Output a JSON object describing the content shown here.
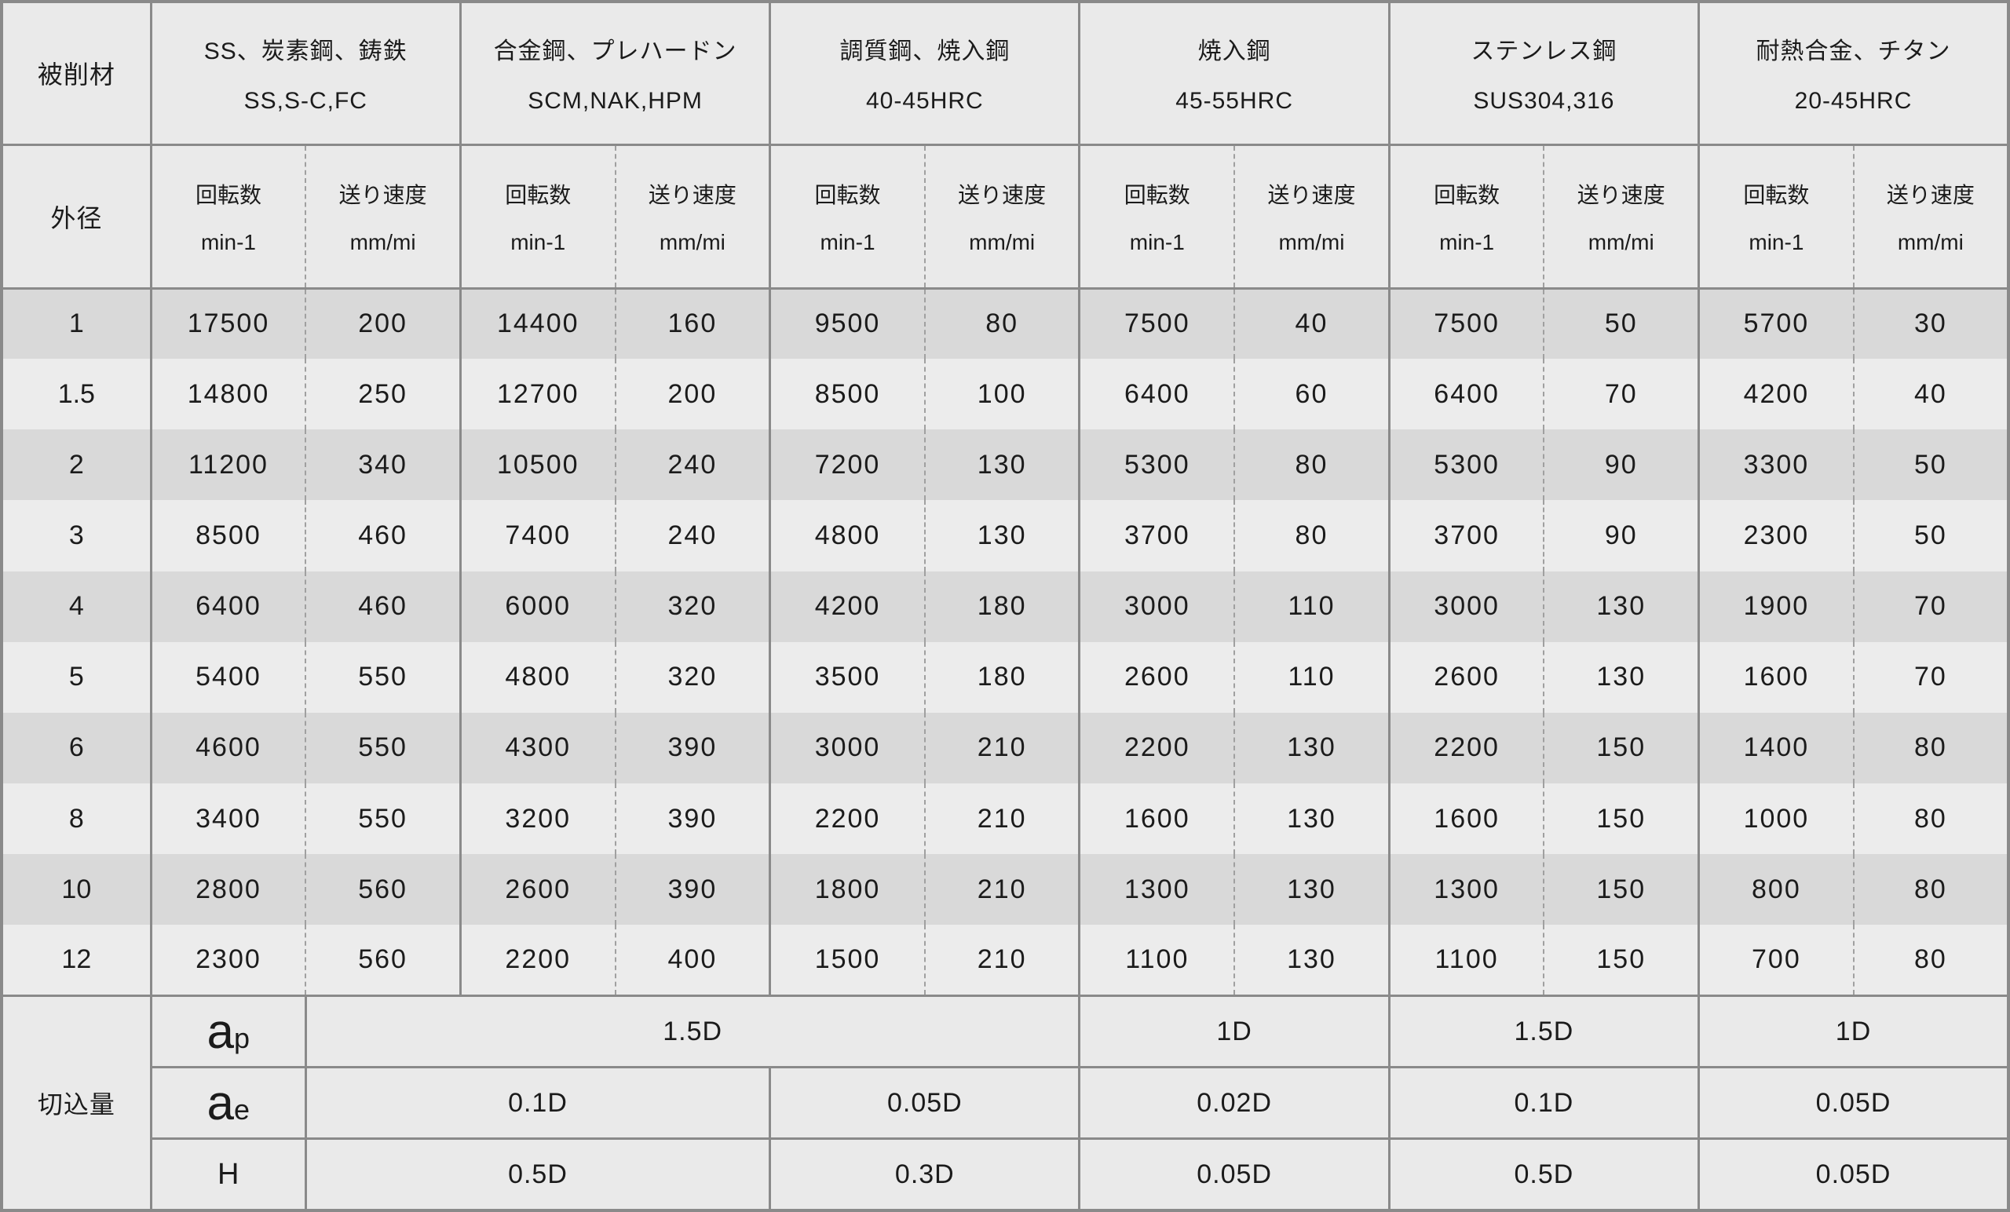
{
  "table": {
    "corner_label": "被削材",
    "diameter_label": "外径",
    "depth_label": "切込量",
    "groups": [
      {
        "name": "SS、炭素鋼、鋳鉄",
        "code": "SS,S-C,FC"
      },
      {
        "name": "合金鋼、プレハードン",
        "code": "SCM,NAK,HPM"
      },
      {
        "name": "調質鋼、焼入鋼",
        "code": "40-45HRC"
      },
      {
        "name": "焼入鋼",
        "code": "45-55HRC"
      },
      {
        "name": "ステンレス鋼",
        "code": "SUS304,316"
      },
      {
        "name": "耐熱合金、チタン",
        "code": "20-45HRC"
      }
    ],
    "subheaders": {
      "speed": "回転数",
      "speed_unit": "min-1",
      "feed": "送り速度",
      "feed_unit": "mm/mi"
    },
    "rows": [
      {
        "d": "1",
        "values": [
          "17500",
          "200",
          "14400",
          "160",
          "9500",
          "80",
          "7500",
          "40",
          "7500",
          "50",
          "5700",
          "30"
        ]
      },
      {
        "d": "1.5",
        "values": [
          "14800",
          "250",
          "12700",
          "200",
          "8500",
          "100",
          "6400",
          "60",
          "6400",
          "70",
          "4200",
          "40"
        ]
      },
      {
        "d": "2",
        "values": [
          "11200",
          "340",
          "10500",
          "240",
          "7200",
          "130",
          "5300",
          "80",
          "5300",
          "90",
          "3300",
          "50"
        ]
      },
      {
        "d": "3",
        "values": [
          "8500",
          "460",
          "7400",
          "240",
          "4800",
          "130",
          "3700",
          "80",
          "3700",
          "90",
          "2300",
          "50"
        ]
      },
      {
        "d": "4",
        "values": [
          "6400",
          "460",
          "6000",
          "320",
          "4200",
          "180",
          "3000",
          "110",
          "3000",
          "130",
          "1900",
          "70"
        ]
      },
      {
        "d": "5",
        "values": [
          "5400",
          "550",
          "4800",
          "320",
          "3500",
          "180",
          "2600",
          "110",
          "2600",
          "130",
          "1600",
          "70"
        ]
      },
      {
        "d": "6",
        "values": [
          "4600",
          "550",
          "4300",
          "390",
          "3000",
          "210",
          "2200",
          "130",
          "2200",
          "150",
          "1400",
          "80"
        ]
      },
      {
        "d": "8",
        "values": [
          "3400",
          "550",
          "3200",
          "390",
          "2200",
          "210",
          "1600",
          "130",
          "1600",
          "150",
          "1000",
          "80"
        ]
      },
      {
        "d": "10",
        "values": [
          "2800",
          "560",
          "2600",
          "390",
          "1800",
          "210",
          "1300",
          "130",
          "1300",
          "150",
          "800",
          "80"
        ]
      },
      {
        "d": "12",
        "values": [
          "2300",
          "560",
          "2200",
          "400",
          "1500",
          "210",
          "1100",
          "130",
          "1100",
          "150",
          "700",
          "80"
        ]
      }
    ],
    "depth_rows": [
      {
        "label_main": "a",
        "label_sub": "p",
        "cells": [
          {
            "text": "1.5D"
          },
          {
            "text": "1D"
          },
          {
            "text": "1.5D"
          },
          {
            "text": "1D"
          }
        ]
      },
      {
        "label_main": "a",
        "label_sub": "e",
        "cells": [
          {
            "text": "0.1D"
          },
          {
            "text": "0.05D"
          },
          {
            "text": "0.02D"
          },
          {
            "text": "0.1D"
          },
          {
            "text": "0.05D"
          }
        ]
      },
      {
        "label_main": "H",
        "label_sub": "",
        "cells": [
          {
            "text": "0.5D"
          },
          {
            "text": "0.3D"
          },
          {
            "text": "0.05D"
          },
          {
            "text": "0.5D"
          },
          {
            "text": "0.05D"
          }
        ]
      }
    ]
  }
}
